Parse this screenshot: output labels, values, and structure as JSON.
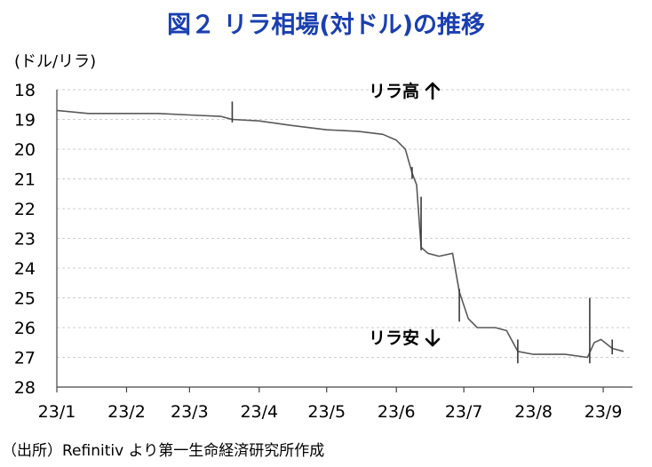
{
  "chart_data": {
    "type": "line",
    "title": "図２ リラ相場(対ドル)の推移",
    "unit_label": "(ドル/リラ)",
    "ylabel": "",
    "xlabel": "",
    "y_inverted": true,
    "ylim": [
      18,
      28
    ],
    "y_ticks": [
      "18",
      "19",
      "20",
      "21",
      "22",
      "23",
      "24",
      "25",
      "26",
      "27",
      "28"
    ],
    "x_tick_labels": [
      "23/1",
      "23/2",
      "23/3",
      "23/4",
      "23/5",
      "23/6",
      "23/7",
      "23/8",
      "23/9"
    ],
    "grid": true,
    "annotations": {
      "up": "リラ高",
      "down": "リラ安"
    },
    "source_note": "（出所）Refinitiv より第一生命経済研究所作成",
    "series": [
      {
        "points": [
          [
            "23/1/1",
            18.7
          ],
          [
            "23/1/15",
            18.8
          ],
          [
            "23/2/1",
            18.8
          ],
          [
            "23/2/15",
            18.8
          ],
          [
            "23/3/1",
            18.85
          ],
          [
            "23/3/15",
            18.9
          ],
          [
            "23/3/20",
            19.0
          ],
          [
            "23/4/1",
            19.05
          ],
          [
            "23/4/15",
            19.2
          ],
          [
            "23/5/1",
            19.35
          ],
          [
            "23/5/15",
            19.4
          ],
          [
            "23/5/26",
            19.5
          ],
          [
            "23/6/1",
            19.7
          ],
          [
            "23/6/5",
            20.0
          ],
          [
            "23/6/8",
            20.8
          ],
          [
            "23/6/10",
            21.2
          ],
          [
            "23/6/12",
            23.3
          ],
          [
            "23/6/15",
            23.5
          ],
          [
            "23/6/20",
            23.6
          ],
          [
            "23/6/26",
            23.5
          ],
          [
            "23/6/29",
            24.8
          ],
          [
            "23/7/3",
            25.7
          ],
          [
            "23/7/7",
            26.0
          ],
          [
            "23/7/15",
            26.0
          ],
          [
            "23/7/20",
            26.1
          ],
          [
            "23/7/25",
            26.8
          ],
          [
            "23/8/1",
            26.9
          ],
          [
            "23/8/15",
            26.9
          ],
          [
            "23/8/25",
            27.0
          ],
          [
            "23/8/28",
            26.5
          ],
          [
            "23/8/31",
            26.4
          ],
          [
            "23/9/5",
            26.7
          ],
          [
            "23/9/10",
            26.8
          ]
        ],
        "range_bars": [
          [
            "23/3/20",
            18.4,
            19.1
          ],
          [
            "23/6/8",
            20.6,
            21.0
          ],
          [
            "23/6/12",
            21.6,
            23.4
          ],
          [
            "23/6/29",
            24.7,
            25.8
          ],
          [
            "23/7/25",
            26.4,
            27.2
          ],
          [
            "23/8/26",
            25.0,
            27.2
          ],
          [
            "23/9/5",
            26.4,
            26.9
          ]
        ]
      }
    ]
  }
}
